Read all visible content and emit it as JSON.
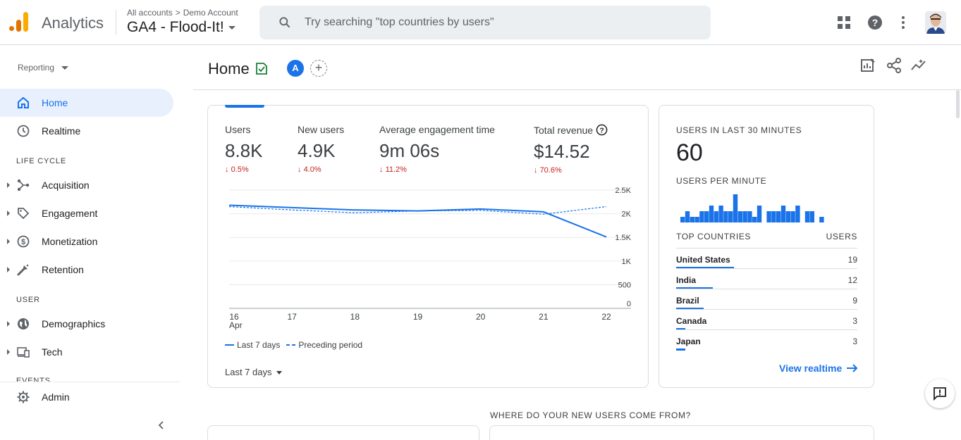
{
  "header": {
    "app_title": "Analytics",
    "breadcrumb_all": "All accounts",
    "breadcrumb_account": "Demo Account",
    "property_name": "GA4 - Flood-It!",
    "search_placeholder": "Try searching \"top countries by users\""
  },
  "sidebar": {
    "reporting_label": "Reporting",
    "home": "Home",
    "realtime": "Realtime",
    "section_lifecycle": "LIFE CYCLE",
    "acquisition": "Acquisition",
    "engagement": "Engagement",
    "monetization": "Monetization",
    "retention": "Retention",
    "section_user": "USER",
    "demographics": "Demographics",
    "tech": "Tech",
    "section_events": "EVENTS",
    "admin": "Admin"
  },
  "page": {
    "title": "Home",
    "comparison_badge": "A"
  },
  "metrics": [
    {
      "label": "Users",
      "value": "8.8K",
      "delta": "0.5%"
    },
    {
      "label": "New users",
      "value": "4.9K",
      "delta": "4.0%"
    },
    {
      "label": "Average engagement time",
      "value": "9m 06s",
      "delta": "11.2%"
    },
    {
      "label": "Total revenue",
      "value": "$14.52",
      "delta": "70.6%"
    }
  ],
  "chart_data": {
    "type": "line",
    "x": [
      "16 Apr",
      "17",
      "18",
      "19",
      "20",
      "21",
      "22"
    ],
    "x_ticks": [
      "16",
      "17",
      "18",
      "19",
      "20",
      "21",
      "22"
    ],
    "x_sub_label": "Apr",
    "y_ticks": [
      "2.5K",
      "2K",
      "1.5K",
      "1K",
      "500",
      "0"
    ],
    "ylim": [
      0,
      2500
    ],
    "series": [
      {
        "name": "Last 7 days",
        "values": [
          2180,
          2130,
          2080,
          2060,
          2100,
          2040,
          1510
        ],
        "style": "solid"
      },
      {
        "name": "Preceding period",
        "values": [
          2150,
          2080,
          2020,
          2060,
          2070,
          1990,
          2150
        ],
        "style": "dashed"
      }
    ],
    "color": "#1a73e8",
    "legend_position": "bottom-left"
  },
  "date_range": "Last 7 days",
  "realtime": {
    "users_label": "USERS IN LAST 30 MINUTES",
    "users_value": "60",
    "per_minute_label": "USERS PER MINUTE",
    "per_minute_values": [
      1,
      2,
      1,
      1,
      2,
      2,
      3,
      2,
      3,
      2,
      2,
      5,
      2,
      2,
      2,
      1,
      3,
      0,
      2,
      2,
      2,
      3,
      2,
      2,
      3,
      0,
      2,
      2,
      0,
      1
    ],
    "countries_header": "TOP COUNTRIES",
    "countries_value_header": "USERS",
    "countries": [
      {
        "name": "United States",
        "users": "19",
        "share": 1.0
      },
      {
        "name": "India",
        "users": "12",
        "share": 0.63
      },
      {
        "name": "Brazil",
        "users": "9",
        "share": 0.47
      },
      {
        "name": "Canada",
        "users": "3",
        "share": 0.16
      },
      {
        "name": "Japan",
        "users": "3",
        "share": 0.16
      }
    ],
    "view_link": "View realtime"
  },
  "section_heading": "WHERE DO YOUR NEW USERS COME FROM?",
  "colors": {
    "accent": "#1a73e8",
    "negative": "#c5221f",
    "logo_orange": "#e37400",
    "logo_yellow": "#f9ab00"
  }
}
